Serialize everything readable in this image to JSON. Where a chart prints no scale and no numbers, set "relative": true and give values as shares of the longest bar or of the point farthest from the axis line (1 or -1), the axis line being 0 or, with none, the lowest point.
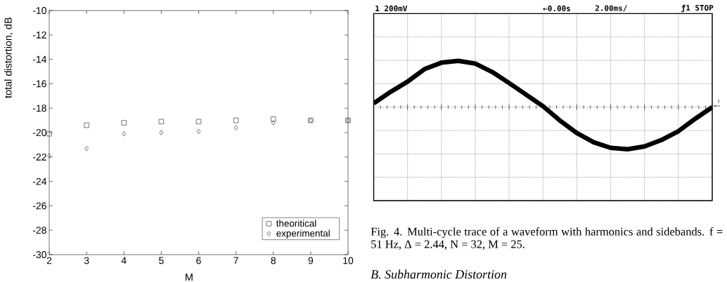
{
  "chart_data": [
    {
      "type": "scatter",
      "xlabel": "M",
      "ylabel": "total distortion, dB",
      "x": [
        2,
        3,
        4,
        5,
        6,
        7,
        8,
        9,
        10
      ],
      "series": [
        {
          "name": "theoritical",
          "color": "#3a3a3a",
          "marker": "square",
          "values": [
            -20.1,
            -19.4,
            -19.2,
            -19.1,
            -19.1,
            -19.0,
            -18.9,
            -19.0,
            -19.0
          ]
        },
        {
          "name": "experimental",
          "color": "#3a3a3a",
          "marker": "diamond",
          "values": [
            -21.9,
            -21.3,
            -20.1,
            -20.0,
            -19.9,
            -19.6,
            -19.2,
            -19.0,
            -19.0
          ]
        }
      ],
      "xlim": [
        2,
        10
      ],
      "ylim": [
        -30,
        -10
      ],
      "xticks": [
        2,
        3,
        4,
        5,
        6,
        7,
        8,
        9,
        10
      ],
      "yticks": [
        -30,
        -28,
        -26,
        -24,
        -22,
        -20,
        -18,
        -16,
        -14,
        -12,
        -10
      ],
      "legend": "bottom right"
    },
    {
      "type": "line",
      "relative": true,
      "categories": [
        null,
        null,
        null,
        null,
        null,
        null,
        null,
        null,
        null,
        null,
        null,
        null,
        null,
        null,
        null,
        null,
        null,
        null,
        null,
        null,
        null
      ],
      "series": [
        {
          "color": "#000000",
          "values": [
            0.08,
            0.33,
            0.55,
            0.82,
            0.96,
            1,
            0.94,
            0.76,
            0.52,
            0.27,
            0.02,
            -0.29,
            -0.56,
            -0.76,
            -0.88,
            -0.91,
            -0.85,
            -0.71,
            -0.52,
            -0.25,
            0
          ]
        }
      ],
      "grid": true,
      "annotations": [
        "1 200mV",
        "←0.00s",
        "2.00ms/",
        "ƒ1 STOP",
        "1",
        "Fig. 4. Multi-cycle trace of a waveform with harmonics and sidebands. f = 51 Hz, Δ = 2.44, N = 32, M = 25.",
        "B. Subharmonic Distortion"
      ]
    }
  ]
}
